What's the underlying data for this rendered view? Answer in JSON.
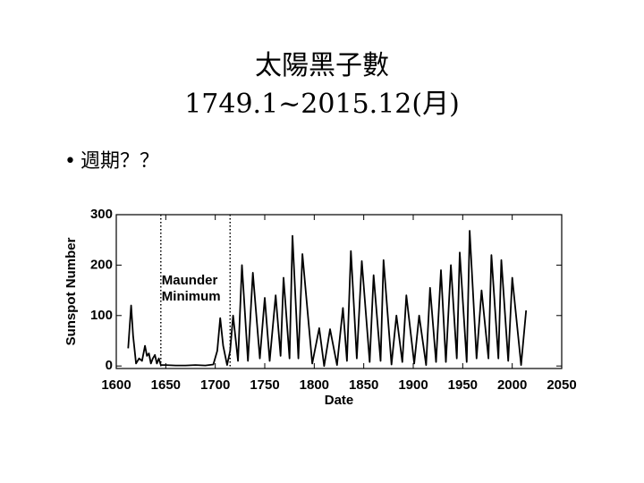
{
  "title": "太陽黑子數",
  "subtitle": "1749.1~2015.12(月)",
  "bullet": "週期？？",
  "chart_data": {
    "type": "line",
    "xlabel": "Date",
    "ylabel": "Sunspot Number",
    "color": "#000000",
    "xlim": [
      1600,
      2050
    ],
    "xticks": [
      1600,
      1650,
      1700,
      1750,
      1800,
      1850,
      1900,
      1950,
      2000,
      2050
    ],
    "ylim": [
      -5,
      300
    ],
    "yticks": [
      0,
      100,
      200,
      300
    ],
    "annotation": {
      "lines": [
        "Maunder",
        "Minimum"
      ],
      "x": [
        1645,
        1715
      ]
    },
    "x": [
      1612,
      1615,
      1617,
      1620,
      1623,
      1626,
      1629,
      1631,
      1633,
      1635,
      1637,
      1639,
      1641,
      1643,
      1645,
      1650,
      1660,
      1670,
      1680,
      1690,
      1698,
      1702,
      1705,
      1708,
      1712,
      1715,
      1718,
      1723,
      1727,
      1733,
      1738,
      1745,
      1750,
      1755,
      1761,
      1766,
      1769,
      1775,
      1778,
      1784,
      1788,
      1798,
      1805,
      1810,
      1816,
      1823,
      1829,
      1833,
      1837,
      1843,
      1848,
      1856,
      1860,
      1867,
      1870,
      1878,
      1883,
      1889,
      1893,
      1901,
      1906,
      1913,
      1917,
      1923,
      1928,
      1933,
      1938,
      1944,
      1947,
      1954,
      1957,
      1964,
      1969,
      1976,
      1979,
      1986,
      1989,
      1996,
      2000,
      2009,
      2014
    ],
    "values": [
      35,
      120,
      60,
      5,
      15,
      10,
      40,
      20,
      25,
      5,
      15,
      22,
      5,
      15,
      2,
      2,
      1,
      1,
      2,
      1,
      3,
      30,
      95,
      40,
      2,
      30,
      100,
      10,
      200,
      10,
      185,
      15,
      135,
      10,
      140,
      20,
      175,
      15,
      258,
      15,
      222,
      5,
      75,
      0,
      73,
      2,
      115,
      10,
      228,
      15,
      208,
      8,
      180,
      10,
      210,
      3,
      100,
      8,
      140,
      5,
      100,
      2,
      155,
      8,
      190,
      8,
      200,
      15,
      225,
      8,
      268,
      15,
      150,
      15,
      220,
      15,
      210,
      10,
      175,
      2,
      110
    ]
  }
}
